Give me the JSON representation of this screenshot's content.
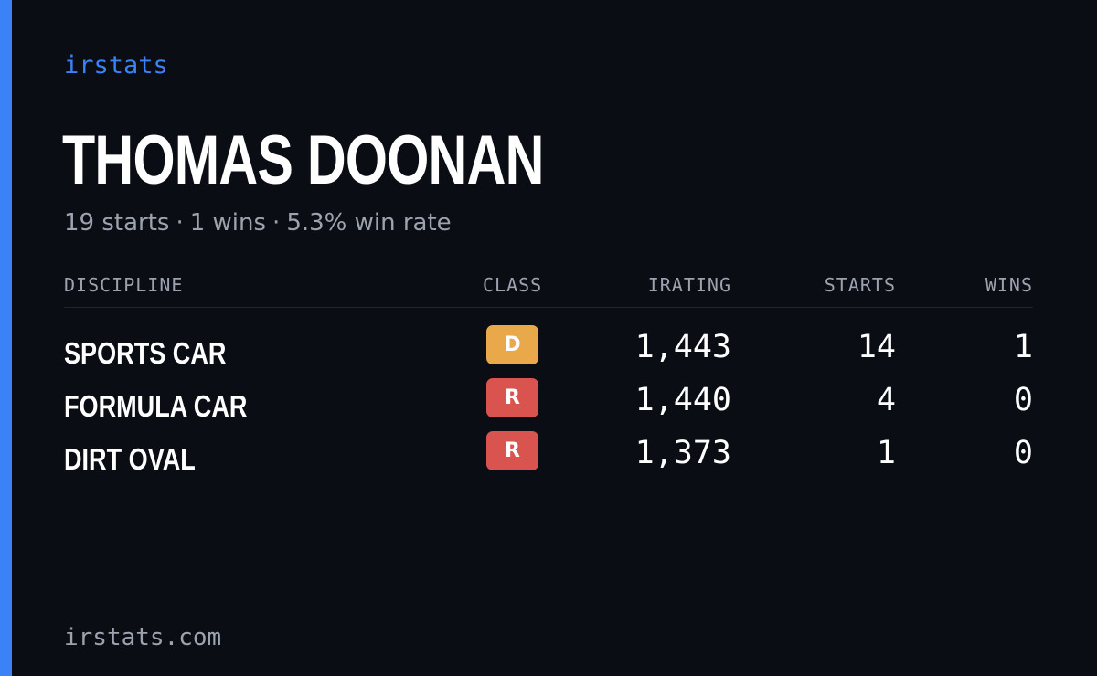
{
  "brand": "irstats",
  "driver_name": "THOMAS DOONAN",
  "summary": {
    "starts_text": "19 starts",
    "wins_text": "1 wins",
    "win_rate_text": "5.3% win rate",
    "separator": "·"
  },
  "table": {
    "headers": {
      "discipline": "DISCIPLINE",
      "class": "CLASS",
      "irating": "IRATING",
      "starts": "STARTS",
      "wins": "WINS"
    },
    "rows": [
      {
        "discipline": "SPORTS CAR",
        "class": "D",
        "class_color": "#e9a84a",
        "irating": "1,443",
        "starts": "14",
        "wins": "1"
      },
      {
        "discipline": "FORMULA CAR",
        "class": "R",
        "class_color": "#d9534f",
        "irating": "1,440",
        "starts": "4",
        "wins": "0"
      },
      {
        "discipline": "DIRT OVAL",
        "class": "R",
        "class_color": "#d9534f",
        "irating": "1,373",
        "starts": "1",
        "wins": "0"
      }
    ]
  },
  "footer": "irstats.com",
  "colors": {
    "accent": "#3b82f6",
    "background": "#0a0d14",
    "muted_text": "#9ca3af"
  }
}
